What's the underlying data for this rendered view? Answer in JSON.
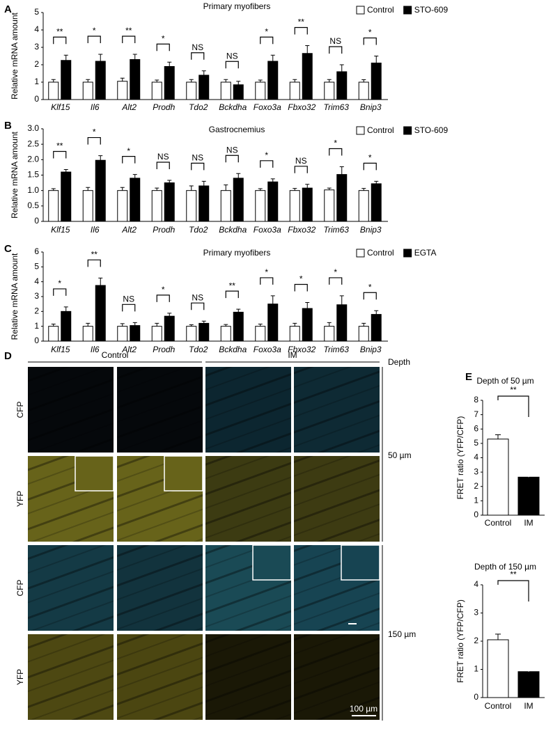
{
  "chart_data": [
    {
      "type": "bar",
      "panel": "A",
      "title": "Primary myofibers",
      "y_label": "Relative mRNA amount",
      "categories": [
        "Klf15",
        "Il6",
        "Alt2",
        "Prodh",
        "Tdo2",
        "Bckdha",
        "Foxo3a",
        "Fbxo32",
        "Trim63",
        "Bnip3"
      ],
      "series": [
        {
          "name": "Control",
          "color": "#ffffff",
          "values": [
            1.0,
            1.0,
            1.05,
            1.0,
            1.0,
            1.0,
            1.0,
            1.0,
            1.0,
            1.0
          ],
          "errors": [
            0.15,
            0.15,
            0.18,
            0.12,
            0.15,
            0.15,
            0.12,
            0.15,
            0.15,
            0.14
          ]
        },
        {
          "name": "STO-609",
          "color": "#000000",
          "values": [
            2.25,
            2.2,
            2.3,
            1.9,
            1.4,
            0.85,
            2.2,
            2.65,
            1.6,
            2.1
          ],
          "errors": [
            0.3,
            0.4,
            0.3,
            0.25,
            0.25,
            0.2,
            0.35,
            0.45,
            0.4,
            0.4
          ]
        }
      ],
      "significance": [
        "**",
        "*",
        "**",
        "*",
        "NS",
        "NS",
        "*",
        "**",
        "NS",
        "*"
      ],
      "ylim": [
        0,
        5
      ],
      "yticks": [
        0,
        1,
        2,
        3,
        4,
        5
      ],
      "legend": "upper right"
    },
    {
      "type": "bar",
      "panel": "B",
      "title": "Gastrocnemius",
      "y_label": "Relative mRNA amount",
      "categories": [
        "Klf15",
        "Il6",
        "Alt2",
        "Prodh",
        "Tdo2",
        "Bckdha",
        "Foxo3a",
        "Fbxo32",
        "Trim63",
        "Bnip3"
      ],
      "series": [
        {
          "name": "Control",
          "color": "#ffffff",
          "values": [
            1.0,
            1.0,
            1.0,
            1.0,
            1.0,
            1.0,
            1.0,
            1.0,
            1.02,
            1.0
          ],
          "errors": [
            0.06,
            0.1,
            0.1,
            0.08,
            0.15,
            0.18,
            0.06,
            0.07,
            0.06,
            0.07
          ]
        },
        {
          "name": "STO-609",
          "color": "#000000",
          "values": [
            1.6,
            1.98,
            1.4,
            1.25,
            1.15,
            1.4,
            1.28,
            1.08,
            1.52,
            1.22
          ],
          "errors": [
            0.08,
            0.15,
            0.12,
            0.08,
            0.15,
            0.15,
            0.1,
            0.12,
            0.25,
            0.08
          ]
        }
      ],
      "significance": [
        "**",
        "*",
        "*",
        "NS",
        "NS",
        "NS",
        "*",
        "NS",
        "*",
        "*"
      ],
      "ylim": [
        0,
        3
      ],
      "yticks": [
        0,
        0.5,
        {
          "value": 1,
          "label": "1.0"
        },
        1.5,
        {
          "value": 2,
          "label": "2.0"
        },
        2.5,
        {
          "value": 3,
          "label": "3.0"
        }
      ],
      "legend": "upper right"
    },
    {
      "type": "bar",
      "panel": "C",
      "title": "Primary myofibers",
      "y_label": "Relative mRNA amount",
      "categories": [
        "Klf15",
        "Il6",
        "Alt2",
        "Prodh",
        "Tdo2",
        "Bckdha",
        "Foxo3a",
        "Fbxo32",
        "Trim63",
        "Bnip3"
      ],
      "series": [
        {
          "name": "Control",
          "color": "#ffffff",
          "values": [
            1.0,
            1.0,
            1.0,
            1.0,
            1.0,
            1.0,
            1.0,
            1.0,
            1.0,
            1.0
          ],
          "errors": [
            0.15,
            0.2,
            0.18,
            0.2,
            0.1,
            0.12,
            0.15,
            0.2,
            0.25,
            0.2
          ]
        },
        {
          "name": "EGTA",
          "color": "#000000",
          "values": [
            2.0,
            3.75,
            1.05,
            1.68,
            1.2,
            1.95,
            2.5,
            2.2,
            2.45,
            1.8
          ],
          "errors": [
            0.3,
            0.5,
            0.2,
            0.2,
            0.15,
            0.2,
            0.55,
            0.4,
            0.6,
            0.25
          ]
        }
      ],
      "significance": [
        "*",
        "**",
        "NS",
        "*",
        "NS",
        "**",
        "*",
        "*",
        "*",
        "*"
      ],
      "ylim": [
        0,
        6
      ],
      "yticks": [
        0,
        1,
        2,
        3,
        4,
        5,
        6
      ],
      "legend": "upper right"
    },
    {
      "type": "bar",
      "panel": "E",
      "title": "Depth of 50 µm",
      "y_label": "FRET ratio (YFP/CFP)",
      "categories": [
        "Control",
        "IM"
      ],
      "values": [
        5.3,
        2.65
      ],
      "errors": [
        0.3,
        0.25
      ],
      "colors": [
        "#ffffff",
        "#000000"
      ],
      "significance": "**",
      "ylim": [
        0,
        8
      ],
      "yticks": [
        0,
        1,
        2,
        3,
        4,
        5,
        6,
        7,
        8
      ]
    },
    {
      "type": "bar",
      "title": "Depth of 150 µm",
      "y_label": "FRET ratio (YFP/CFP)",
      "categories": [
        "Control",
        "IM"
      ],
      "values": [
        2.05,
        0.92
      ],
      "errors": [
        0.2,
        0.1
      ],
      "colors": [
        "#ffffff",
        "#000000"
      ],
      "significance": "**",
      "ylim": [
        0,
        4
      ],
      "yticks": [
        0,
        1,
        2,
        3,
        4
      ]
    }
  ],
  "image_panel": {
    "label": "D",
    "groups": [
      "Control",
      "IM"
    ],
    "depth_header": "Depth",
    "rows": [
      "CFP",
      "YFP",
      "CFP",
      "YFP"
    ],
    "depths": [
      "50 µm",
      "150 µm"
    ],
    "scale_bar": "100 µm"
  }
}
